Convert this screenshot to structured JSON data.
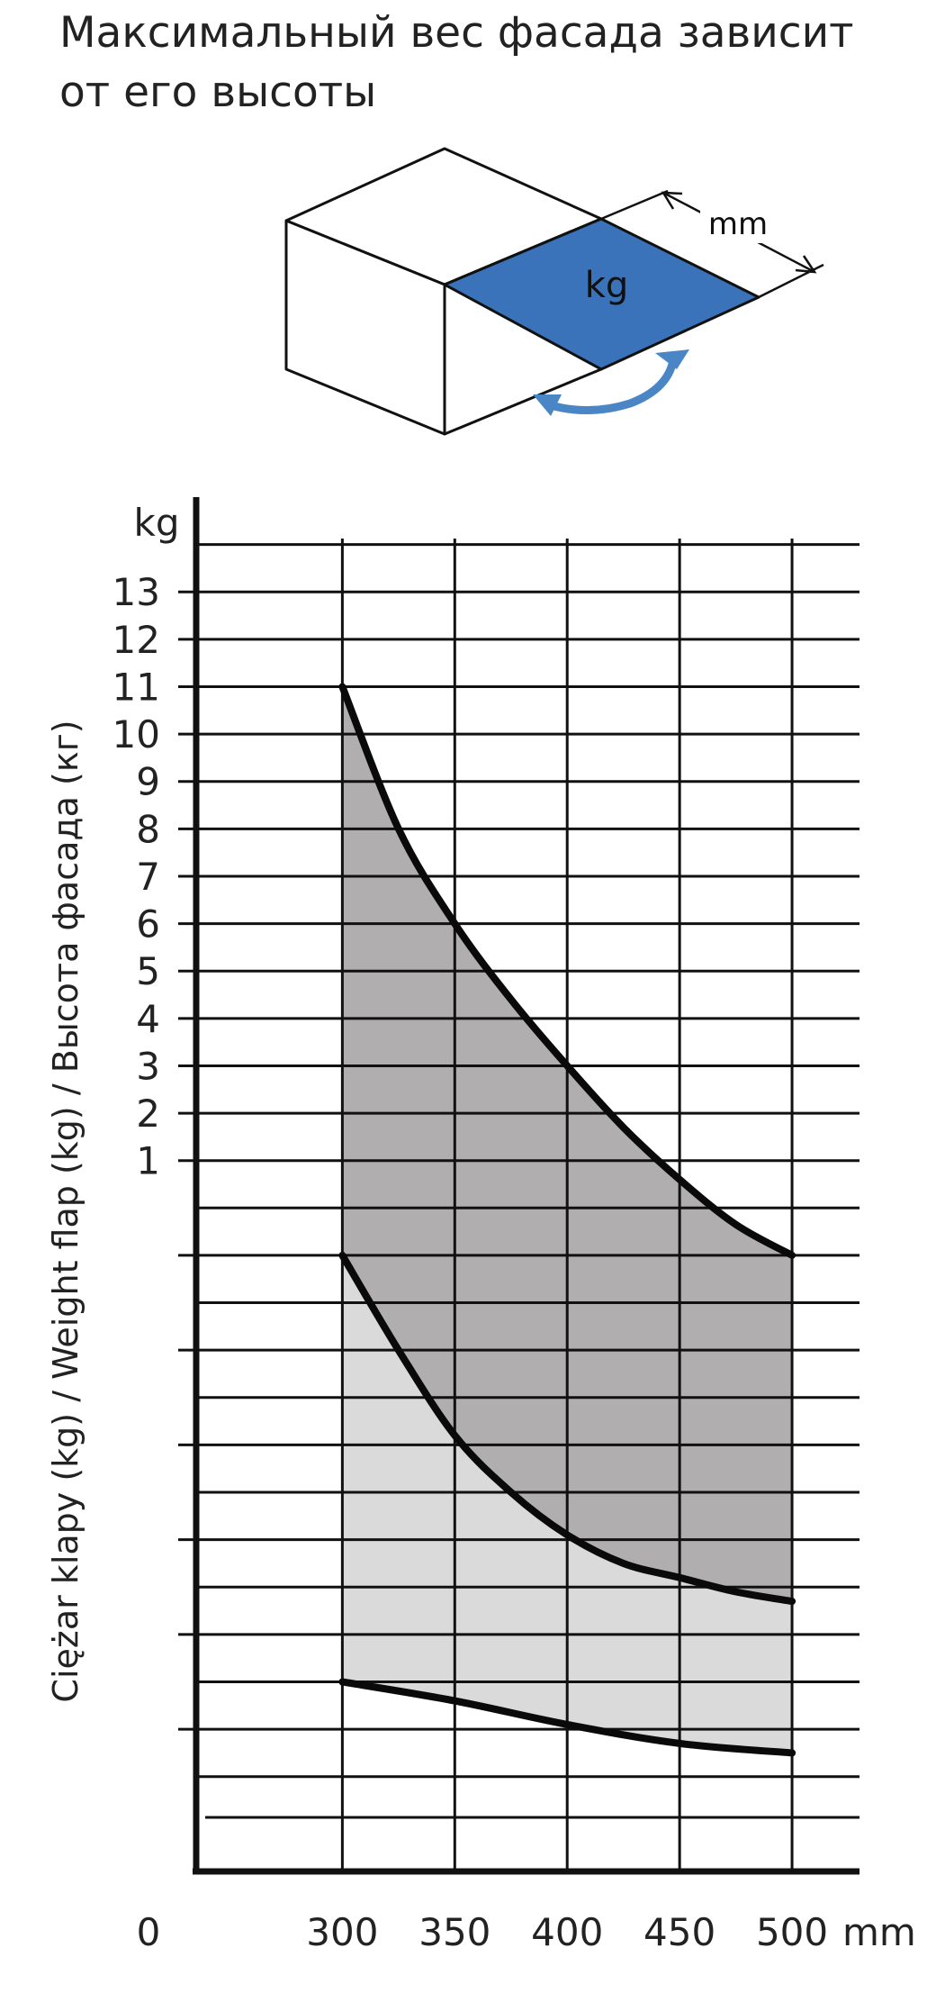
{
  "page": {
    "title_line1": "Максимальный вес фасада зависит",
    "title_line2": "от его высоты"
  },
  "illustration": {
    "weight_label": "kg",
    "length_label": "mm",
    "face_color": "#3a73b9",
    "arrow_color": "#4a86c6"
  },
  "chart_data": {
    "type": "area",
    "ylabel": "Ciężar klapy (kg) / Weight flap (kg) / Высота фасада (кг)",
    "y_unit_label": "kg",
    "x_unit_label": "mm",
    "origin_label": "0",
    "xlim": [
      235,
      530
    ],
    "ylim": [
      -14,
      15
    ],
    "x_ticks": [
      300,
      350,
      400,
      450,
      500
    ],
    "y_ticks": [
      1,
      2,
      3,
      4,
      5,
      6,
      7,
      8,
      9,
      10,
      11,
      12,
      13
    ],
    "gridlines_y": [
      14,
      13,
      12,
      11,
      10,
      9,
      8,
      7,
      6,
      5,
      4,
      3,
      2,
      1,
      0,
      -1,
      -2,
      -3,
      -4,
      -5,
      -6,
      -7,
      -8,
      -9,
      -10,
      -11,
      -12
    ],
    "grid": true,
    "series": [
      {
        "x": [
          300,
          325,
          350,
          375,
          400,
          425,
          450,
          475,
          500
        ],
        "y": [
          11,
          8,
          6,
          4.4,
          3.0,
          1.7,
          0.6,
          -0.35,
          -1.0
        ]
      },
      {
        "x": [
          300,
          325,
          350,
          375,
          400,
          425,
          450,
          475,
          500
        ],
        "y": [
          -1,
          -3,
          -4.8,
          -6.0,
          -6.9,
          -7.5,
          -7.8,
          -8.1,
          -8.3
        ]
      },
      {
        "x": [
          300,
          350,
          400,
          450,
          500
        ],
        "y": [
          -10,
          -10.4,
          -10.9,
          -11.3,
          -11.5
        ]
      }
    ],
    "fill_colors": {
      "upper_band": "#b0aeaf",
      "lower_band": "#dadada"
    }
  }
}
